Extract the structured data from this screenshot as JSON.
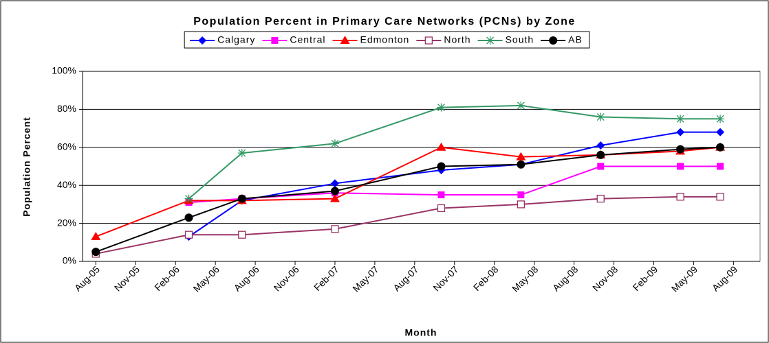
{
  "chart_data": {
    "type": "line",
    "title": "Population Percent in Primary Care Networks (PCNs) by Zone",
    "x_label": "Month",
    "y_label": "Population Percent",
    "x": [
      "2005-08",
      "2006-03",
      "2006-07",
      "2007-02",
      "2007-10",
      "2008-04",
      "2008-10",
      "2009-04",
      "2009-07"
    ],
    "xlim": [
      "2005-07",
      "2009-10"
    ],
    "xticks": [
      {
        "value": "2005-08",
        "label": "Aug-05"
      },
      {
        "value": "2005-11",
        "label": "Nov-05"
      },
      {
        "value": "2006-02",
        "label": "Feb-06"
      },
      {
        "value": "2006-05",
        "label": "May-06"
      },
      {
        "value": "2006-08",
        "label": "Aug-06"
      },
      {
        "value": "2006-11",
        "label": "Nov-06"
      },
      {
        "value": "2007-02",
        "label": "Feb-07"
      },
      {
        "value": "2007-05",
        "label": "May-07"
      },
      {
        "value": "2007-08",
        "label": "Aug-07"
      },
      {
        "value": "2007-11",
        "label": "Nov-07"
      },
      {
        "value": "2008-02",
        "label": "Feb-08"
      },
      {
        "value": "2008-05",
        "label": "May-08"
      },
      {
        "value": "2008-08",
        "label": "Aug-08"
      },
      {
        "value": "2008-11",
        "label": "Nov-08"
      },
      {
        "value": "2009-02",
        "label": "Feb-09"
      },
      {
        "value": "2009-05",
        "label": "May-09"
      },
      {
        "value": "2009-08",
        "label": "Aug-09"
      }
    ],
    "ylim": [
      0,
      100
    ],
    "yticks": [
      {
        "value": 0,
        "label": "0%"
      },
      {
        "value": 20,
        "label": "20%"
      },
      {
        "value": 40,
        "label": "40%"
      },
      {
        "value": 60,
        "label": "60%"
      },
      {
        "value": 80,
        "label": "80%"
      },
      {
        "value": 100,
        "label": "100%"
      }
    ],
    "grid": true,
    "legend": "top",
    "series": [
      {
        "name": "Calgary",
        "color": "#0000ff",
        "marker": "diamond",
        "values": [
          null,
          13,
          32,
          41,
          48,
          51,
          61,
          68,
          68
        ]
      },
      {
        "name": "Central",
        "color": "#ff00ff",
        "marker": "square",
        "values": [
          null,
          31,
          33,
          36,
          35,
          35,
          50,
          50,
          50
        ]
      },
      {
        "name": "Edmonton",
        "color": "#ff0000",
        "marker": "triangle",
        "values": [
          13,
          32,
          32,
          33,
          60,
          55,
          56,
          58,
          60
        ]
      },
      {
        "name": "North",
        "color": "#993366",
        "marker": "open-square",
        "values": [
          4,
          14,
          14,
          17,
          28,
          30,
          33,
          34,
          34
        ]
      },
      {
        "name": "South",
        "color": "#339966",
        "marker": "asterisk",
        "values": [
          null,
          33,
          57,
          62,
          81,
          82,
          76,
          75,
          75
        ]
      },
      {
        "name": "AB",
        "color": "#000000",
        "marker": "circle",
        "values": [
          5,
          23,
          33,
          37,
          50,
          51,
          56,
          59,
          60
        ]
      }
    ]
  }
}
